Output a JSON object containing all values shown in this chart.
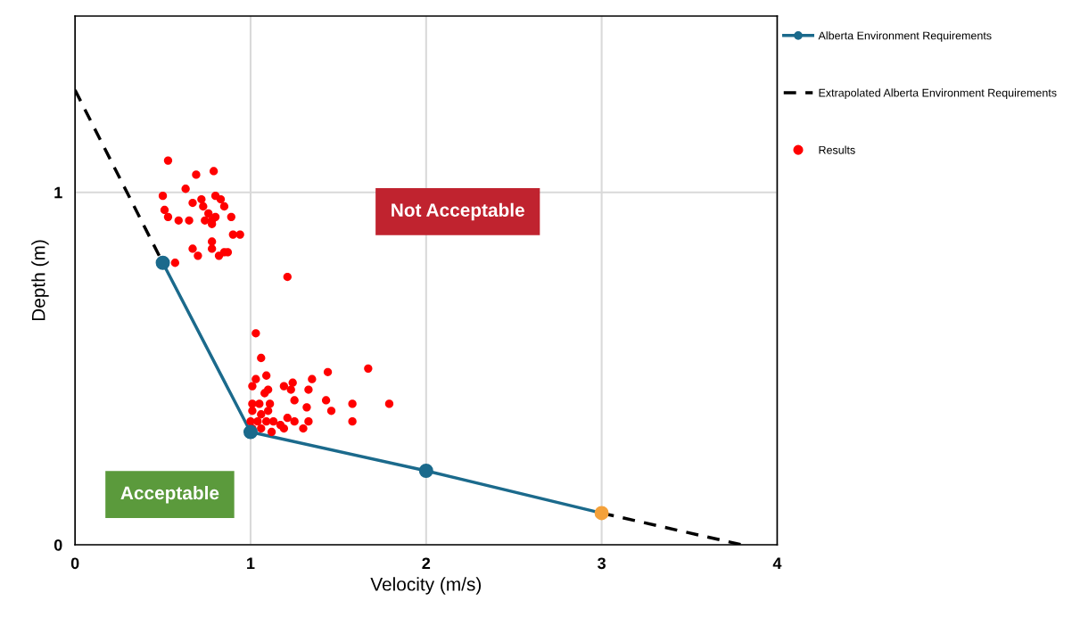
{
  "chart_data": {
    "type": "line",
    "xlabel": "Velocity (m/s)",
    "ylabel": "Depth (m)",
    "xlim": [
      0,
      4
    ],
    "ylim": [
      0,
      1.5
    ],
    "xticks": [
      0,
      1,
      2,
      3,
      4
    ],
    "yticks": [
      0,
      1
    ],
    "grid": true,
    "legend": "right",
    "series": [
      {
        "name": "Alberta Environment Requirements",
        "color": "#1b6a8c",
        "colors": [
          "#1b6a8c",
          "#1b6a8c",
          "#1b6a8c",
          "#f4a13a"
        ],
        "marker": "circle",
        "line_style": "solid",
        "x": [
          0.5,
          1,
          2,
          3
        ],
        "values": [
          0.8,
          0.32,
          0.21,
          0.09
        ]
      },
      {
        "name": "Extrapolated Alberta Environment Requirements",
        "type": "line",
        "color": "#000000",
        "marker": "none",
        "line_style": "dashed",
        "x": [
          0,
          0.5,
          1,
          3,
          3.8
        ],
        "values": [
          1.29,
          0.8,
          null,
          0.09,
          0
        ]
      },
      {
        "name": "Results",
        "type": "scatter",
        "color": "#ff0000",
        "marker": "circle",
        "x": [
          0.53,
          0.69,
          0.79,
          0.63,
          0.5,
          0.72,
          0.67,
          0.8,
          0.83,
          0.85,
          0.51,
          0.73,
          0.76,
          0.53,
          0.59,
          0.65,
          0.74,
          0.78,
          0.8,
          0.78,
          0.89,
          0.9,
          0.94,
          0.78,
          0.78,
          0.67,
          0.7,
          0.82,
          0.85,
          0.87,
          0.57,
          1.21,
          1.03,
          1.06,
          1.03,
          1.01,
          1.09,
          1.1,
          1.08,
          1.19,
          1.24,
          1.23,
          1.33,
          1.35,
          1.44,
          1.67,
          1.25,
          1.43,
          1.46,
          1.58,
          1.79,
          1.32,
          1.58,
          1.33,
          1.3,
          1.25,
          1.21,
          1.19,
          1.11,
          1.01,
          1.05,
          1.01,
          1.06,
          1.1,
          1.0,
          1.04,
          1.09,
          1.13,
          1.01,
          1.06,
          1.12,
          1.17
        ],
        "values": [
          1.09,
          1.05,
          1.06,
          1.01,
          0.99,
          0.98,
          0.97,
          0.99,
          0.98,
          0.96,
          0.95,
          0.96,
          0.94,
          0.93,
          0.92,
          0.92,
          0.92,
          0.92,
          0.93,
          0.91,
          0.93,
          0.88,
          0.88,
          0.86,
          0.84,
          0.84,
          0.82,
          0.82,
          0.83,
          0.83,
          0.8,
          0.76,
          0.6,
          0.53,
          0.47,
          0.45,
          0.48,
          0.44,
          0.43,
          0.45,
          0.46,
          0.44,
          0.44,
          0.47,
          0.49,
          0.5,
          0.41,
          0.41,
          0.38,
          0.4,
          0.4,
          0.39,
          0.35,
          0.35,
          0.33,
          0.35,
          0.36,
          0.33,
          0.4,
          0.4,
          0.4,
          0.38,
          0.37,
          0.38,
          0.35,
          0.35,
          0.35,
          0.35,
          0.33,
          0.33,
          0.32,
          0.34
        ]
      }
    ],
    "annotations": [
      "Not Acceptable",
      "Acceptable"
    ]
  }
}
